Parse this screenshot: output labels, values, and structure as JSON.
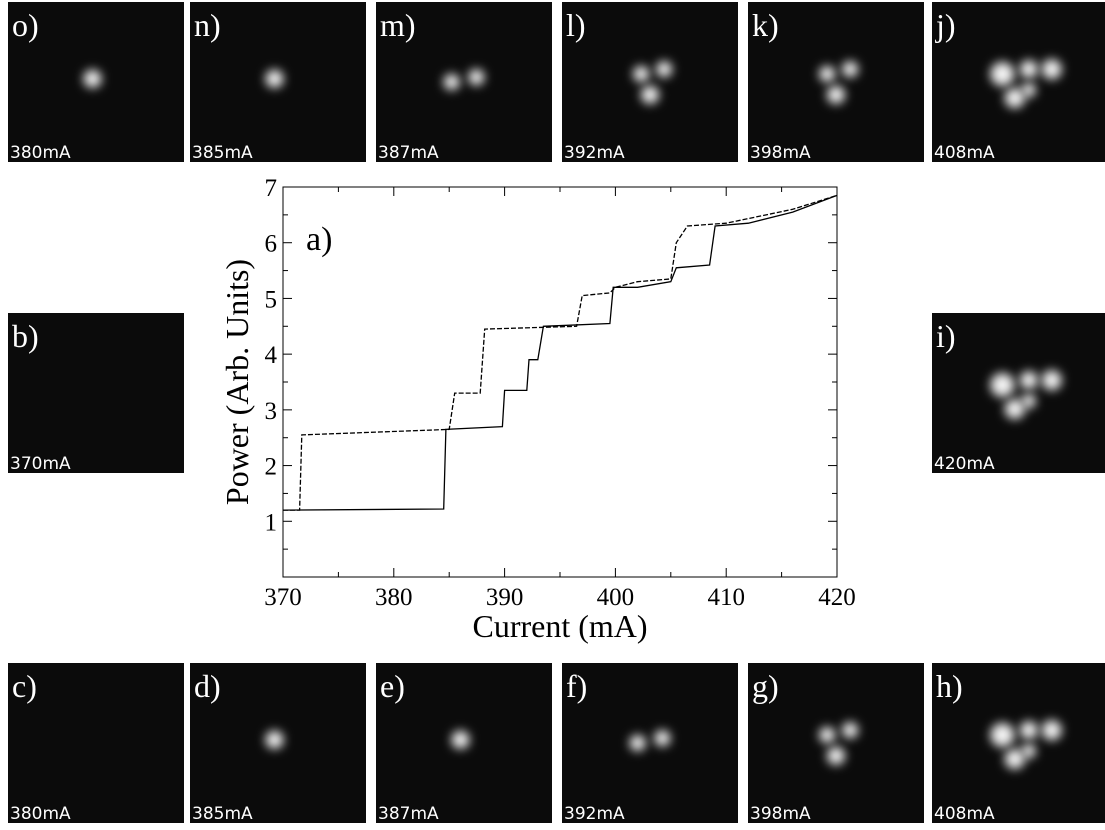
{
  "chart_data": {
    "type": "line",
    "annotation": "a)",
    "xlabel": "Current (mA)",
    "ylabel": "Power (Arb. Units)",
    "xlim": [
      370,
      420
    ],
    "xticks": [
      370,
      380,
      390,
      400,
      410,
      420
    ],
    "xminorticks": [
      375,
      385,
      395,
      405,
      415
    ],
    "ylim": [
      0,
      7
    ],
    "yticks": [
      1,
      2,
      3,
      4,
      5,
      6,
      7
    ],
    "yminorticks": [
      0.5,
      1.5,
      2.5,
      3.5,
      4.5,
      5.5,
      6.5
    ],
    "series": [
      {
        "color": "#000000",
        "dashed": false,
        "x": [
          370,
          384.5,
          384.7,
          389.8,
          390,
          392,
          392.2,
          393,
          393.5,
          399.5,
          399.8,
          402,
          405,
          405.5,
          408.5,
          409,
          412,
          416,
          420
        ],
        "values": [
          1.2,
          1.22,
          2.65,
          2.7,
          3.35,
          3.35,
          3.9,
          3.9,
          4.5,
          4.55,
          5.2,
          5.2,
          5.3,
          5.55,
          5.6,
          6.3,
          6.35,
          6.55,
          6.85
        ]
      },
      {
        "color": "#000000",
        "dashed": true,
        "x": [
          370,
          371.5,
          371.7,
          385,
          385.5,
          387.8,
          388.2,
          396.5,
          397,
          399.5,
          400,
          402,
          405,
          405.5,
          406.5,
          410,
          416,
          420
        ],
        "values": [
          1.2,
          1.2,
          2.55,
          2.65,
          3.3,
          3.3,
          4.45,
          4.5,
          5.05,
          5.1,
          5.2,
          5.3,
          5.35,
          6.0,
          6.3,
          6.35,
          6.6,
          6.85
        ]
      }
    ]
  },
  "panels": [
    {
      "label": "o)",
      "current": "380mA"
    },
    {
      "label": "n)",
      "current": "385mA"
    },
    {
      "label": "m)",
      "current": "387mA"
    },
    {
      "label": "l)",
      "current": "392mA"
    },
    {
      "label": "k)",
      "current": "398mA"
    },
    {
      "label": "j)",
      "current": "408mA"
    },
    {
      "label": "b)",
      "current": "370mA"
    },
    {
      "label": "i)",
      "current": "420mA"
    },
    {
      "label": "c)",
      "current": "380mA"
    },
    {
      "label": "d)",
      "current": "385mA"
    },
    {
      "label": "e)",
      "current": "387mA"
    },
    {
      "label": "f)",
      "current": "392mA"
    },
    {
      "label": "g)",
      "current": "398mA"
    },
    {
      "label": "h)",
      "current": "408mA"
    }
  ]
}
